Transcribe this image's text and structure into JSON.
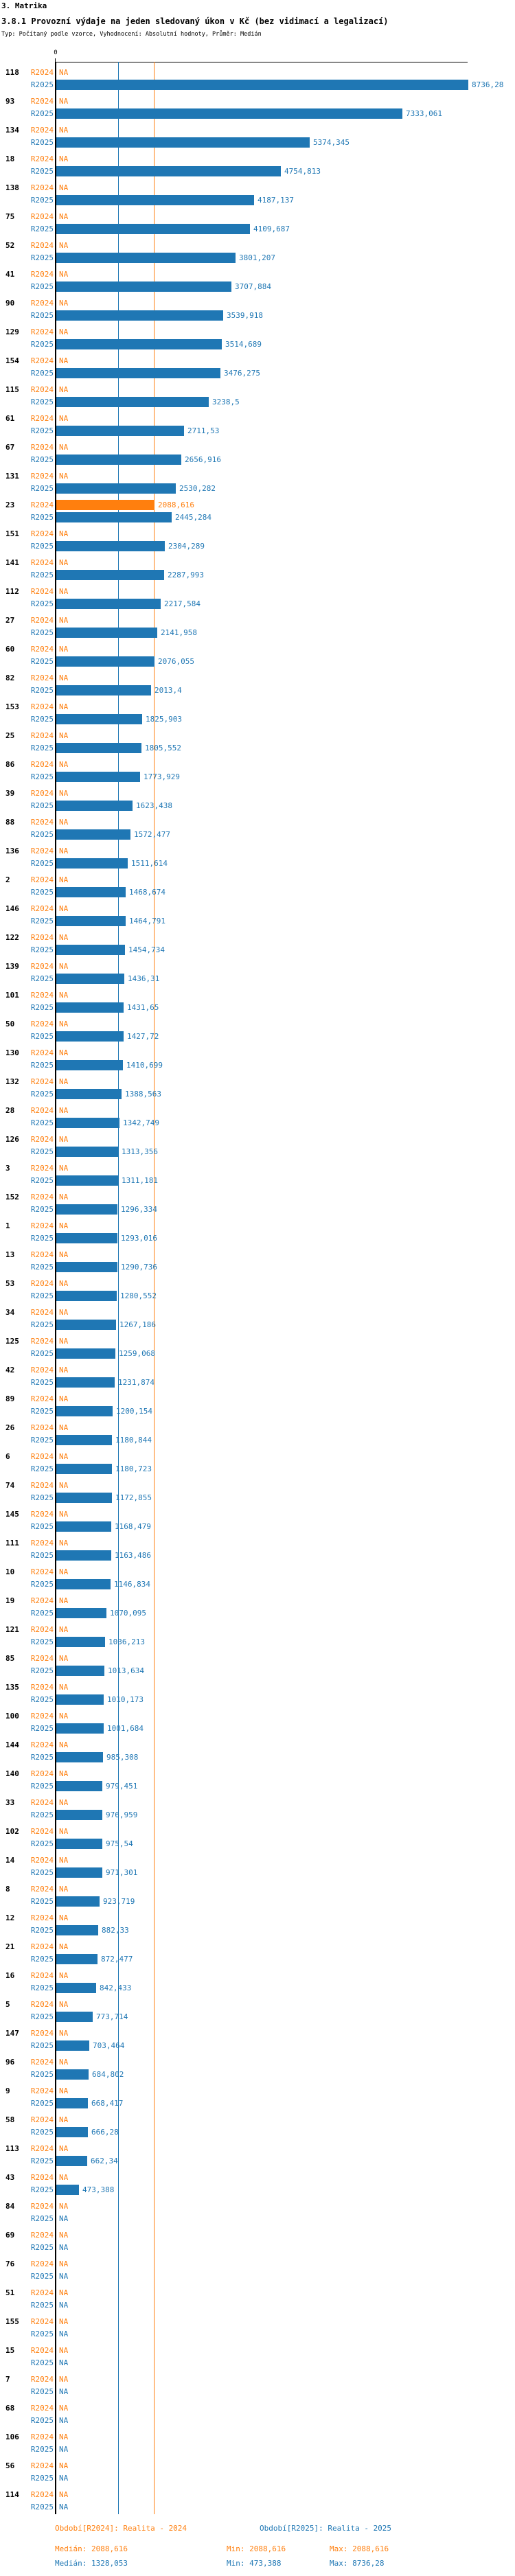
{
  "header": {
    "title": "3. Matrika",
    "subtitle": "3.8.1 Provozní výdaje na jeden sledovaný úkon v Kč (bez vidimací a legalizací)",
    "meta": "Typ: Počítaný podle vzorce, Vyhodnocení: Absolutní hodnoty, Průměr: Medián"
  },
  "chart_data": {
    "type": "bar",
    "orientation": "horizontal",
    "title": "3.8.1 Provozní výdaje na jeden sledovaný úkon v Kč (bez vidimací a legalizací)",
    "unit": "Kč",
    "na_label": "NA",
    "axis": {
      "tick_label": "0",
      "x_min": 0,
      "x_max": 8736.28,
      "grid": false
    },
    "periods": [
      {
        "key": "R2024",
        "label": "R2024",
        "color": "#ff7f0e"
      },
      {
        "key": "R2025",
        "label": "R2025",
        "color": "#1f77b4"
      }
    ],
    "reference_lines": [
      {
        "name": "median-R2024",
        "value": 2088.616,
        "color": "#ff7f0e"
      },
      {
        "name": "median-R2025",
        "value": 1328.053,
        "color": "#1f77b4"
      }
    ],
    "rows": [
      {
        "id": "118",
        "R2024": "NA",
        "R2025": "8736,28"
      },
      {
        "id": "93",
        "R2024": "NA",
        "R2025": "7333,061"
      },
      {
        "id": "134",
        "R2024": "NA",
        "R2025": "5374,345"
      },
      {
        "id": "18",
        "R2024": "NA",
        "R2025": "4754,813"
      },
      {
        "id": "138",
        "R2024": "NA",
        "R2025": "4187,137"
      },
      {
        "id": "75",
        "R2024": "NA",
        "R2025": "4109,687"
      },
      {
        "id": "52",
        "R2024": "NA",
        "R2025": "3801,207"
      },
      {
        "id": "41",
        "R2024": "NA",
        "R2025": "3707,884"
      },
      {
        "id": "90",
        "R2024": "NA",
        "R2025": "3539,918"
      },
      {
        "id": "129",
        "R2024": "NA",
        "R2025": "3514,689"
      },
      {
        "id": "154",
        "R2024": "NA",
        "R2025": "3476,275"
      },
      {
        "id": "115",
        "R2024": "NA",
        "R2025": "3238,5"
      },
      {
        "id": "61",
        "R2024": "NA",
        "R2025": "2711,53"
      },
      {
        "id": "67",
        "R2024": "NA",
        "R2025": "2656,916"
      },
      {
        "id": "131",
        "R2024": "NA",
        "R2025": "2530,282"
      },
      {
        "id": "23",
        "R2024": "2088,616",
        "R2025": "2445,284"
      },
      {
        "id": "151",
        "R2024": "NA",
        "R2025": "2304,289"
      },
      {
        "id": "141",
        "R2024": "NA",
        "R2025": "2287,993"
      },
      {
        "id": "112",
        "R2024": "NA",
        "R2025": "2217,584"
      },
      {
        "id": "27",
        "R2024": "NA",
        "R2025": "2141,958"
      },
      {
        "id": "60",
        "R2024": "NA",
        "R2025": "2076,055"
      },
      {
        "id": "82",
        "R2024": "NA",
        "R2025": "2013,4"
      },
      {
        "id": "153",
        "R2024": "NA",
        "R2025": "1825,903"
      },
      {
        "id": "25",
        "R2024": "NA",
        "R2025": "1805,552"
      },
      {
        "id": "86",
        "R2024": "NA",
        "R2025": "1773,929"
      },
      {
        "id": "39",
        "R2024": "NA",
        "R2025": "1623,438"
      },
      {
        "id": "88",
        "R2024": "NA",
        "R2025": "1572,477"
      },
      {
        "id": "136",
        "R2024": "NA",
        "R2025": "1511,614"
      },
      {
        "id": "2",
        "R2024": "NA",
        "R2025": "1468,674"
      },
      {
        "id": "146",
        "R2024": "NA",
        "R2025": "1464,791"
      },
      {
        "id": "122",
        "R2024": "NA",
        "R2025": "1454,734"
      },
      {
        "id": "139",
        "R2024": "NA",
        "R2025": "1436,31"
      },
      {
        "id": "101",
        "R2024": "NA",
        "R2025": "1431,65"
      },
      {
        "id": "50",
        "R2024": "NA",
        "R2025": "1427,72"
      },
      {
        "id": "130",
        "R2024": "NA",
        "R2025": "1410,699"
      },
      {
        "id": "132",
        "R2024": "NA",
        "R2025": "1388,563"
      },
      {
        "id": "28",
        "R2024": "NA",
        "R2025": "1342,749"
      },
      {
        "id": "126",
        "R2024": "NA",
        "R2025": "1313,356"
      },
      {
        "id": "3",
        "R2024": "NA",
        "R2025": "1311,181"
      },
      {
        "id": "152",
        "R2024": "NA",
        "R2025": "1296,334"
      },
      {
        "id": "1",
        "R2024": "NA",
        "R2025": "1293,016"
      },
      {
        "id": "13",
        "R2024": "NA",
        "R2025": "1290,736"
      },
      {
        "id": "53",
        "R2024": "NA",
        "R2025": "1280,552"
      },
      {
        "id": "34",
        "R2024": "NA",
        "R2025": "1267,186"
      },
      {
        "id": "125",
        "R2024": "NA",
        "R2025": "1259,068"
      },
      {
        "id": "42",
        "R2024": "NA",
        "R2025": "1231,874"
      },
      {
        "id": "89",
        "R2024": "NA",
        "R2025": "1200,154"
      },
      {
        "id": "26",
        "R2024": "NA",
        "R2025": "1180,844"
      },
      {
        "id": "6",
        "R2024": "NA",
        "R2025": "1180,723"
      },
      {
        "id": "74",
        "R2024": "NA",
        "R2025": "1172,855"
      },
      {
        "id": "145",
        "R2024": "NA",
        "R2025": "1168,479"
      },
      {
        "id": "111",
        "R2024": "NA",
        "R2025": "1163,486"
      },
      {
        "id": "10",
        "R2024": "NA",
        "R2025": "1146,834"
      },
      {
        "id": "19",
        "R2024": "NA",
        "R2025": "1070,095"
      },
      {
        "id": "121",
        "R2024": "NA",
        "R2025": "1036,213"
      },
      {
        "id": "85",
        "R2024": "NA",
        "R2025": "1013,634"
      },
      {
        "id": "135",
        "R2024": "NA",
        "R2025": "1010,173"
      },
      {
        "id": "100",
        "R2024": "NA",
        "R2025": "1001,684"
      },
      {
        "id": "144",
        "R2024": "NA",
        "R2025": "985,308"
      },
      {
        "id": "140",
        "R2024": "NA",
        "R2025": "979,451"
      },
      {
        "id": "33",
        "R2024": "NA",
        "R2025": "976,959"
      },
      {
        "id": "102",
        "R2024": "NA",
        "R2025": "975,54"
      },
      {
        "id": "14",
        "R2024": "NA",
        "R2025": "971,301"
      },
      {
        "id": "8",
        "R2024": "NA",
        "R2025": "923,719"
      },
      {
        "id": "12",
        "R2024": "NA",
        "R2025": "882,33"
      },
      {
        "id": "21",
        "R2024": "NA",
        "R2025": "872,477"
      },
      {
        "id": "16",
        "R2024": "NA",
        "R2025": "842,433"
      },
      {
        "id": "5",
        "R2024": "NA",
        "R2025": "773,714"
      },
      {
        "id": "147",
        "R2024": "NA",
        "R2025": "703,464"
      },
      {
        "id": "96",
        "R2024": "NA",
        "R2025": "684,802"
      },
      {
        "id": "9",
        "R2024": "NA",
        "R2025": "668,417"
      },
      {
        "id": "58",
        "R2024": "NA",
        "R2025": "666,28"
      },
      {
        "id": "113",
        "R2024": "NA",
        "R2025": "662,34"
      },
      {
        "id": "43",
        "R2024": "NA",
        "R2025": "473,388"
      },
      {
        "id": "84",
        "R2024": "NA",
        "R2025": "NA"
      },
      {
        "id": "69",
        "R2024": "NA",
        "R2025": "NA"
      },
      {
        "id": "76",
        "R2024": "NA",
        "R2025": "NA"
      },
      {
        "id": "51",
        "R2024": "NA",
        "R2025": "NA"
      },
      {
        "id": "155",
        "R2024": "NA",
        "R2025": "NA"
      },
      {
        "id": "15",
        "R2024": "NA",
        "R2025": "NA"
      },
      {
        "id": "7",
        "R2024": "NA",
        "R2025": "NA"
      },
      {
        "id": "68",
        "R2024": "NA",
        "R2025": "NA"
      },
      {
        "id": "106",
        "R2024": "NA",
        "R2025": "NA"
      },
      {
        "id": "56",
        "R2024": "NA",
        "R2025": "NA"
      },
      {
        "id": "114",
        "R2024": "NA",
        "R2025": "NA"
      }
    ],
    "summary": {
      "R2024": {
        "median": "2088,616",
        "min": "2088,616",
        "max": "2088,616"
      },
      "R2025": {
        "median": "1328,053",
        "min": "473,388",
        "max": "8736,28"
      }
    }
  },
  "legend": {
    "r2024_period": "Období[R2024]: Realita - 2024",
    "r2025_period": "Období[R2025]: Realita - 2025",
    "r2024_median": "Medián: 2088,616",
    "r2024_min": "Min: 2088,616",
    "r2024_max": "Max: 2088,616",
    "r2025_median": "Medián: 1328,053",
    "r2025_min": "Min: 473,388",
    "r2025_max": "Max: 8736,28"
  }
}
